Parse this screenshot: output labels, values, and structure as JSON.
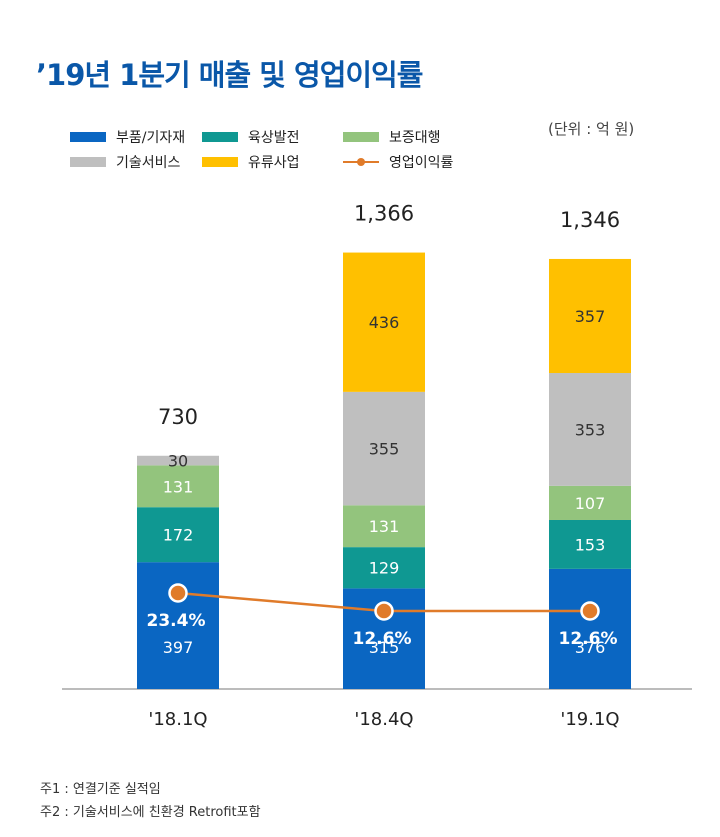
{
  "title": "’19년 1분기 매출 및 영업이익률",
  "unit_label": "(단위 : 억 원)",
  "notes": [
    "주1 : 연결기준 실적임",
    "주2 : 기술서비스에 친환경 Retrofit포함"
  ],
  "colors": {
    "parts": "#0a66c2",
    "offshore": "#0f9892",
    "warranty": "#93c47d",
    "tech_service": "#bfbfbf",
    "distribution": "#ffc000",
    "margin_line": "#e07b2a"
  },
  "chart_data": {
    "type": "bar",
    "stacked": true,
    "categories": [
      "'18.1Q",
      "'18.4Q",
      "'19.1Q"
    ],
    "series": [
      {
        "name": "부품/기자재",
        "color_key": "parts",
        "values": [
          397,
          315,
          376
        ]
      },
      {
        "name": "육상발전",
        "color_key": "offshore",
        "values": [
          172,
          129,
          153
        ]
      },
      {
        "name": "보증대행",
        "color_key": "warranty",
        "values": [
          131,
          131,
          107
        ]
      },
      {
        "name": "기술서비스",
        "color_key": "tech_service",
        "values": [
          30,
          355,
          353
        ]
      },
      {
        "name": "유류사업",
        "color_key": "distribution",
        "values": [
          0,
          436,
          357
        ]
      }
    ],
    "totals": [
      "730",
      "1,366",
      "1,346"
    ],
    "segment_labels": [
      [
        "397",
        "172",
        "131",
        "30",
        ""
      ],
      [
        "315",
        "129",
        "131",
        "355",
        "436"
      ],
      [
        "376",
        "153",
        "107",
        "353",
        "357"
      ]
    ],
    "line_series": {
      "name": "영업이익률",
      "values": [
        23.4,
        12.6,
        12.6
      ],
      "labels": [
        "23.4%",
        "12.6%",
        "12.6%"
      ]
    },
    "legend_placement": "top-left",
    "grid": false
  }
}
